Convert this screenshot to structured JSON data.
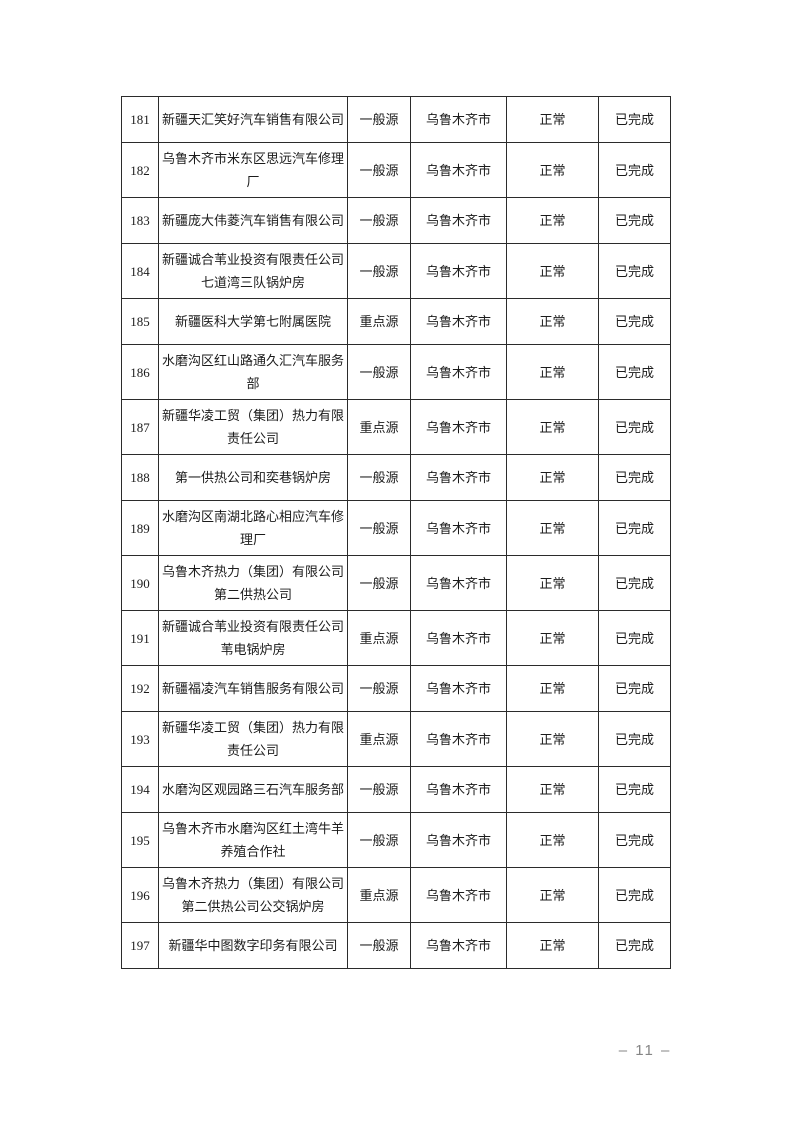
{
  "table": {
    "rows": [
      {
        "num": "181",
        "name": "新疆天汇笑好汽车销售有限公司",
        "source_type": "一般源",
        "city": "乌鲁木齐市",
        "status": "正常",
        "completion": "已完成"
      },
      {
        "num": "182",
        "name": "乌鲁木齐市米东区思远汽车修理厂",
        "source_type": "一般源",
        "city": "乌鲁木齐市",
        "status": "正常",
        "completion": "已完成"
      },
      {
        "num": "183",
        "name": "新疆庞大伟菱汽车销售有限公司",
        "source_type": "一般源",
        "city": "乌鲁木齐市",
        "status": "正常",
        "completion": "已完成"
      },
      {
        "num": "184",
        "name": "新疆诚合苇业投资有限责任公司七道湾三队锅炉房",
        "source_type": "一般源",
        "city": "乌鲁木齐市",
        "status": "正常",
        "completion": "已完成"
      },
      {
        "num": "185",
        "name": "新疆医科大学第七附属医院",
        "source_type": "重点源",
        "city": "乌鲁木齐市",
        "status": "正常",
        "completion": "已完成"
      },
      {
        "num": "186",
        "name": "水磨沟区红山路通久汇汽车服务部",
        "source_type": "一般源",
        "city": "乌鲁木齐市",
        "status": "正常",
        "completion": "已完成"
      },
      {
        "num": "187",
        "name": "新疆华凌工贸（集团）热力有限责任公司",
        "source_type": "重点源",
        "city": "乌鲁木齐市",
        "status": "正常",
        "completion": "已完成"
      },
      {
        "num": "188",
        "name": "第一供热公司和奕巷锅炉房",
        "source_type": "一般源",
        "city": "乌鲁木齐市",
        "status": "正常",
        "completion": "已完成"
      },
      {
        "num": "189",
        "name": "水磨沟区南湖北路心相应汽车修理厂",
        "source_type": "一般源",
        "city": "乌鲁木齐市",
        "status": "正常",
        "completion": "已完成"
      },
      {
        "num": "190",
        "name": "乌鲁木齐热力（集团）有限公司第二供热公司",
        "source_type": "一般源",
        "city": "乌鲁木齐市",
        "status": "正常",
        "completion": "已完成"
      },
      {
        "num": "191",
        "name": "新疆诚合苇业投资有限责任公司苇电锅炉房",
        "source_type": "重点源",
        "city": "乌鲁木齐市",
        "status": "正常",
        "completion": "已完成"
      },
      {
        "num": "192",
        "name": "新疆福凌汽车销售服务有限公司",
        "source_type": "一般源",
        "city": "乌鲁木齐市",
        "status": "正常",
        "completion": "已完成"
      },
      {
        "num": "193",
        "name": "新疆华凌工贸（集团）热力有限责任公司",
        "source_type": "重点源",
        "city": "乌鲁木齐市",
        "status": "正常",
        "completion": "已完成"
      },
      {
        "num": "194",
        "name": "水磨沟区观园路三石汽车服务部",
        "source_type": "一般源",
        "city": "乌鲁木齐市",
        "status": "正常",
        "completion": "已完成"
      },
      {
        "num": "195",
        "name": "乌鲁木齐市水磨沟区红土湾牛羊养殖合作社",
        "source_type": "一般源",
        "city": "乌鲁木齐市",
        "status": "正常",
        "completion": "已完成"
      },
      {
        "num": "196",
        "name": "乌鲁木齐热力（集团）有限公司第二供热公司公交锅炉房",
        "source_type": "重点源",
        "city": "乌鲁木齐市",
        "status": "正常",
        "completion": "已完成"
      },
      {
        "num": "197",
        "name": "新疆华中图数字印务有限公司",
        "source_type": "一般源",
        "city": "乌鲁木齐市",
        "status": "正常",
        "completion": "已完成"
      }
    ]
  },
  "footer": {
    "page_number": "– 11 –"
  }
}
